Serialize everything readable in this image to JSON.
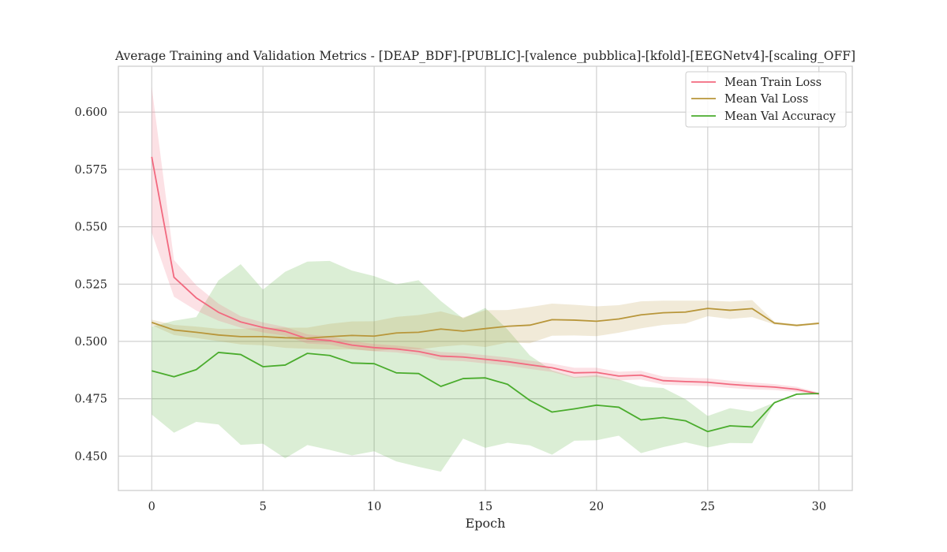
{
  "chart_data": {
    "type": "line",
    "title": "Average Training and Validation Metrics - [DEAP_BDF]-[PUBLIC]-[valence_pubblica]-[kfold]-[EEGNetv4]-[scaling_OFF]",
    "xlabel": "Epoch",
    "ylabel": "",
    "xlim": [
      -1.5,
      31.5
    ],
    "ylim": [
      0.435,
      0.62
    ],
    "xticks": [
      0,
      5,
      10,
      15,
      20,
      25,
      30
    ],
    "yticks": [
      0.45,
      0.475,
      0.5,
      0.525,
      0.55,
      0.575,
      0.6
    ],
    "ytick_labels": [
      "0.450",
      "0.475",
      "0.500",
      "0.525",
      "0.550",
      "0.575",
      "0.600"
    ],
    "grid": true,
    "legend_position": "top-right",
    "x": [
      0,
      1,
      2,
      3,
      4,
      5,
      6,
      7,
      8,
      9,
      10,
      11,
      12,
      13,
      14,
      15,
      16,
      17,
      18,
      19,
      20,
      21,
      22,
      23,
      24,
      25,
      26,
      27,
      28,
      29,
      30
    ],
    "series": [
      {
        "name": "Mean Train Loss",
        "color": "#f2697f",
        "values": [
          0.5805,
          0.528,
          0.519,
          0.5127,
          0.5085,
          0.5061,
          0.5044,
          0.5011,
          0.5004,
          0.4984,
          0.4973,
          0.4967,
          0.4956,
          0.4936,
          0.4932,
          0.4922,
          0.4912,
          0.4898,
          0.4885,
          0.4863,
          0.4865,
          0.4849,
          0.4853,
          0.4829,
          0.4825,
          0.4822,
          0.4813,
          0.4806,
          0.4801,
          0.4791,
          0.4771
        ],
        "upper": [
          0.611,
          0.5355,
          0.5245,
          0.5165,
          0.511,
          0.5083,
          0.5063,
          0.5031,
          0.5022,
          0.5001,
          0.4989,
          0.4982,
          0.4972,
          0.4954,
          0.495,
          0.494,
          0.493,
          0.4916,
          0.4903,
          0.4885,
          0.4885,
          0.4868,
          0.4872,
          0.4847,
          0.4842,
          0.4839,
          0.4829,
          0.4821,
          0.4814,
          0.4802,
          0.4777
        ],
        "lower": [
          0.5475,
          0.5195,
          0.5135,
          0.509,
          0.506,
          0.5039,
          0.5025,
          0.4991,
          0.4986,
          0.4967,
          0.4957,
          0.4952,
          0.494,
          0.4918,
          0.4914,
          0.4904,
          0.4894,
          0.488,
          0.4867,
          0.4841,
          0.4845,
          0.483,
          0.4834,
          0.4811,
          0.4808,
          0.4805,
          0.4797,
          0.4791,
          0.4788,
          0.478,
          0.4765
        ]
      },
      {
        "name": "Mean Val Loss",
        "color": "#b8963a",
        "values": [
          0.5083,
          0.505,
          0.504,
          0.5028,
          0.5021,
          0.5021,
          0.5016,
          0.5014,
          0.5021,
          0.5026,
          0.5023,
          0.5037,
          0.504,
          0.5054,
          0.5045,
          0.5056,
          0.5066,
          0.5071,
          0.5095,
          0.5093,
          0.5088,
          0.5098,
          0.5116,
          0.5125,
          0.5128,
          0.5144,
          0.5136,
          0.5143,
          0.508,
          0.507,
          0.5079
        ],
        "upper": [
          0.5095,
          0.5072,
          0.5065,
          0.5055,
          0.5055,
          0.5059,
          0.506,
          0.506,
          0.5077,
          0.5087,
          0.5088,
          0.5107,
          0.5115,
          0.5131,
          0.5105,
          0.5136,
          0.5137,
          0.515,
          0.5165,
          0.516,
          0.5153,
          0.5158,
          0.5175,
          0.5178,
          0.5178,
          0.5178,
          0.5174,
          0.518,
          0.5086,
          0.5075,
          0.5084
        ],
        "lower": [
          0.5071,
          0.5028,
          0.5015,
          0.5001,
          0.4987,
          0.4983,
          0.4972,
          0.4968,
          0.4965,
          0.4965,
          0.4958,
          0.4967,
          0.4965,
          0.4977,
          0.4985,
          0.4976,
          0.4995,
          0.4992,
          0.5025,
          0.5026,
          0.5023,
          0.5038,
          0.5057,
          0.5072,
          0.5078,
          0.511,
          0.5098,
          0.5106,
          0.5074,
          0.5065,
          0.5074
        ]
      },
      {
        "name": "Mean Val Accuracy",
        "color": "#4aac2d",
        "values": [
          0.4872,
          0.4846,
          0.4877,
          0.4952,
          0.4943,
          0.489,
          0.4897,
          0.4948,
          0.4939,
          0.4906,
          0.4903,
          0.4863,
          0.486,
          0.4804,
          0.4838,
          0.4841,
          0.4813,
          0.4743,
          0.4692,
          0.4706,
          0.4722,
          0.4713,
          0.4658,
          0.4668,
          0.4654,
          0.4607,
          0.4632,
          0.4627,
          0.4733,
          0.477,
          0.4773
        ],
        "upper": [
          0.5065,
          0.509,
          0.5106,
          0.5266,
          0.5337,
          0.5226,
          0.5304,
          0.5348,
          0.5351,
          0.5309,
          0.5285,
          0.5249,
          0.5267,
          0.5176,
          0.51,
          0.5146,
          0.5052,
          0.4939,
          0.4874,
          0.4845,
          0.4853,
          0.4834,
          0.4803,
          0.4797,
          0.4748,
          0.4675,
          0.4709,
          0.4694,
          0.4734,
          0.477,
          0.4773
        ],
        "lower": [
          0.4681,
          0.4602,
          0.4649,
          0.4638,
          0.4549,
          0.4554,
          0.449,
          0.4548,
          0.4527,
          0.4503,
          0.4521,
          0.4477,
          0.4453,
          0.4432,
          0.4576,
          0.4536,
          0.4558,
          0.4547,
          0.4506,
          0.4567,
          0.4569,
          0.4589,
          0.4513,
          0.4539,
          0.456,
          0.4538,
          0.4557,
          0.4556,
          0.4732,
          0.477,
          0.4773
        ]
      }
    ]
  }
}
